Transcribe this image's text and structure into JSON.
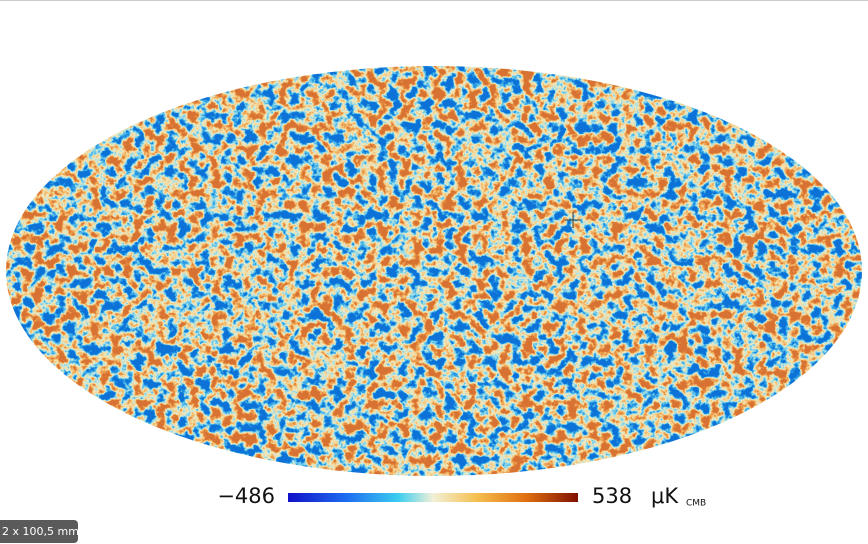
{
  "colorbar": {
    "min_label": "−486",
    "max_label": "538",
    "unit": "μK",
    "unit_subscript": "CMB"
  },
  "status": "2 x 100,5 mm"
}
